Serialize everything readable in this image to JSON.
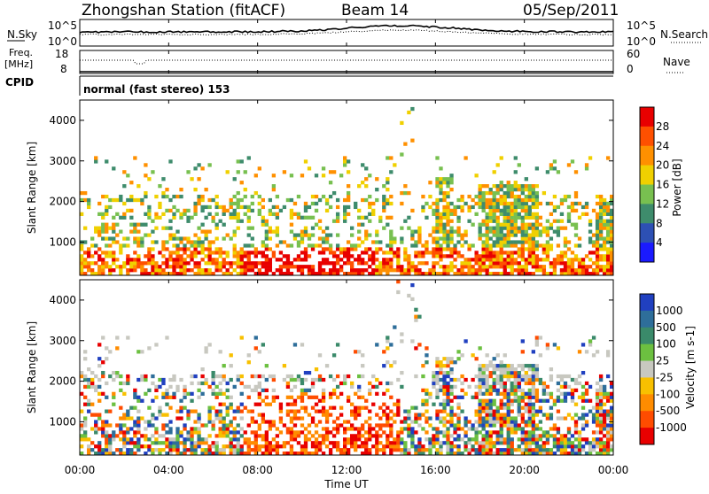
{
  "header": {
    "station_title": "Zhongshan Station (fitACF)",
    "beam": "Beam 14",
    "date": "05/Sep/2011"
  },
  "top_panels": {
    "nsky_label": "N.Sky",
    "nsearch_label": "N.Search",
    "nsky_ticks": [
      "10^5",
      "10^0"
    ],
    "nsearch_ticks": [
      "10^5",
      "10^0"
    ],
    "freq_label_1": "Freq.",
    "freq_label_2": "[MHz]",
    "freq_ticks": [
      "18",
      "8"
    ],
    "nave_label": "Nave",
    "nave_ticks": [
      "60",
      "0"
    ],
    "cpid_label": "CPID",
    "cpid_text": "normal (fast stereo) 153"
  },
  "chart_data": [
    {
      "type": "heatmap",
      "name": "power-panel",
      "ylabel": "Slant Range [km]",
      "ylim": [
        180,
        4500
      ],
      "yticks": [
        "1000",
        "2000",
        "3000",
        "4000"
      ],
      "colorbar_label": "Power [dB]",
      "colorbar_ticks": [
        "4",
        "8",
        "12",
        "16",
        "20",
        "24",
        "28"
      ],
      "colors": [
        "#1a1aff",
        "#2d50b4",
        "#3e8c6c",
        "#78c050",
        "#f0d000",
        "#ff9000",
        "#ff5000",
        "#e80000"
      ]
    },
    {
      "type": "heatmap",
      "name": "velocity-panel",
      "ylabel": "Slant Range [km]",
      "ylim": [
        180,
        4500
      ],
      "yticks": [
        "1000",
        "2000",
        "3000",
        "4000"
      ],
      "colorbar_label": "Velocity [m s-1]",
      "colorbar_ticks": [
        "1000",
        "500",
        "100",
        "25",
        "-25",
        "-100",
        "-500",
        "-1000"
      ],
      "colors": [
        "#2040c0",
        "#2e6e9a",
        "#3a8a6a",
        "#6cc040",
        "#c8c8c0",
        "#f8c000",
        "#ff8c00",
        "#ff4c00",
        "#e80000"
      ]
    }
  ],
  "xaxis": {
    "label": "Time UT",
    "ticks": [
      "00:00",
      "04:00",
      "08:00",
      "12:00",
      "16:00",
      "20:00",
      "00:00"
    ]
  }
}
